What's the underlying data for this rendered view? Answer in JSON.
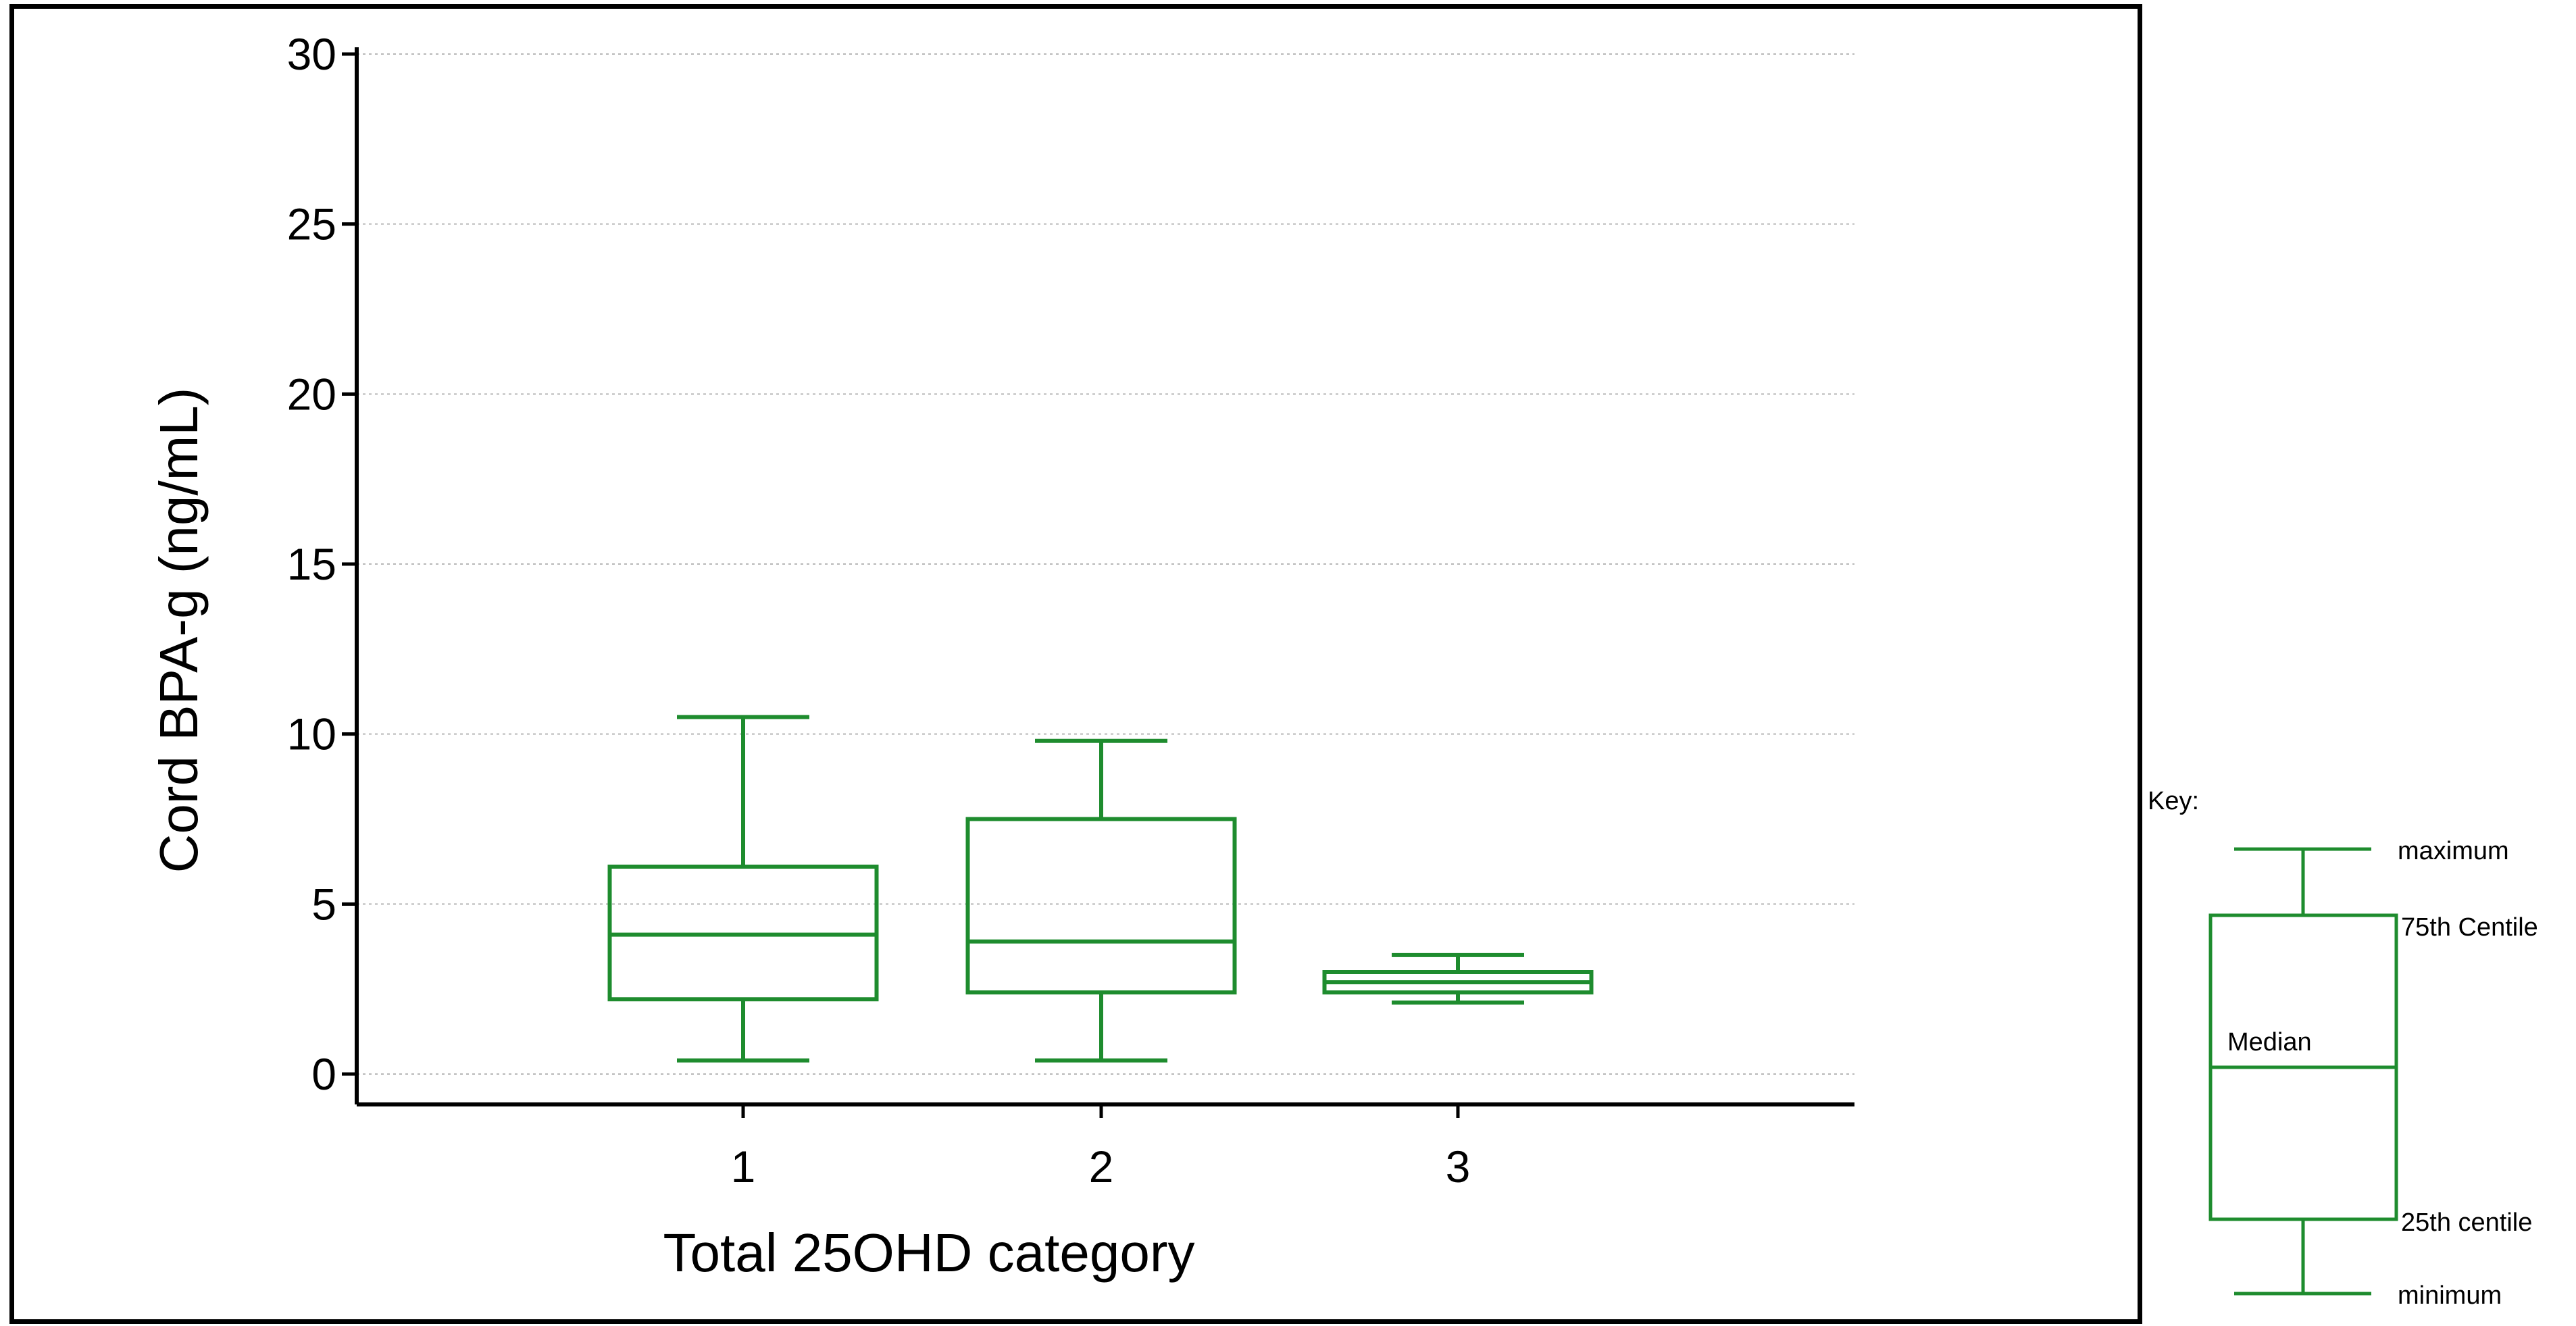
{
  "chart_data": {
    "type": "box",
    "xlabel": "Total 25OHD  category",
    "ylabel": "Cord BPA-g  (ng/mL)",
    "ylim": [
      0,
      30
    ],
    "yticks": [
      0,
      5,
      10,
      15,
      20,
      25,
      30
    ],
    "categories": [
      "1",
      "2",
      "3"
    ],
    "grid": "horizontal dotted",
    "color": "#1e8c2e",
    "boxes": [
      {
        "category": "1",
        "min": 0.4,
        "q1": 2.2,
        "median": 4.1,
        "q3": 6.1,
        "max": 10.5
      },
      {
        "category": "2",
        "min": 0.4,
        "q1": 2.4,
        "median": 3.9,
        "q3": 7.5,
        "max": 9.8
      },
      {
        "category": "3",
        "min": 2.1,
        "q1": 2.4,
        "median": 2.7,
        "q3": 3.0,
        "max": 3.5
      }
    ]
  },
  "key": {
    "title": "Key:",
    "maximum": "maximum",
    "upper": "75th Centile",
    "median": "Median",
    "lower": "25th centile",
    "minimum": "minimum"
  }
}
